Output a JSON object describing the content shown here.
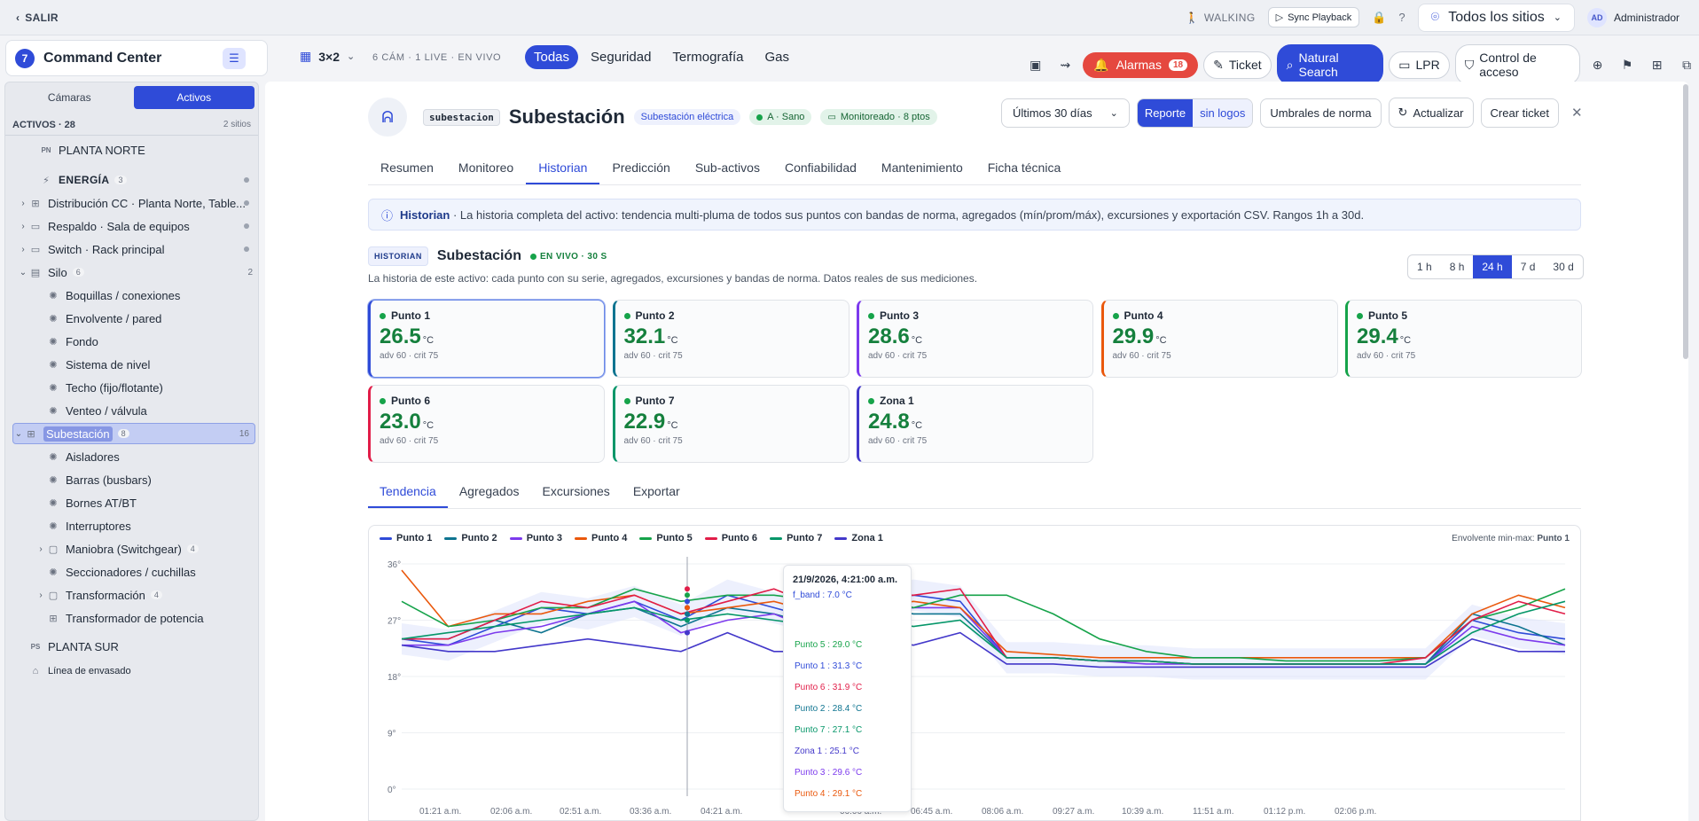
{
  "topbar": {
    "exit_label": "SALIR",
    "walking_label": "WALKING",
    "sync_label": "Sync Playback",
    "sites_label": "Todos los sitios",
    "admin_initials": "AD",
    "admin_label": "Administrador"
  },
  "nav": {
    "brand": "Command Center",
    "brand_num": "7",
    "grid_label": "3×2",
    "cams_label": "6 CÁM · 1 LIVE · EN VIVO",
    "filters": [
      "Todas",
      "Seguridad",
      "Termografía",
      "Gas"
    ],
    "alarms_label": "Alarmas",
    "alarms_count": "18",
    "ticket_label": "Ticket",
    "natural_search_label": "Natural Search",
    "lpr_label": "LPR",
    "access_label": "Control de acceso"
  },
  "sidebar": {
    "tab_cameras": "Cámaras",
    "tab_assets": "Activos",
    "assets_title": "ACTIVOS · 28",
    "sites_count": "2 sitios",
    "items": [
      {
        "label": "PLANTA NORTE",
        "icon": "PN"
      },
      {
        "label": "ENERGÍA",
        "badge": "3"
      },
      {
        "label": "Distribución CC · Planta Norte, Table..."
      },
      {
        "label": "Respaldo · Sala de equipos"
      },
      {
        "label": "Switch · Rack principal"
      },
      {
        "label": "Silo",
        "badge": "6",
        "right": "2"
      },
      {
        "label": "Boquillas / conexiones"
      },
      {
        "label": "Envolvente / pared"
      },
      {
        "label": "Fondo"
      },
      {
        "label": "Sistema de nivel"
      },
      {
        "label": "Techo (fijo/flotante)"
      },
      {
        "label": "Venteo / válvula"
      },
      {
        "label": "Subestación",
        "badge": "8",
        "right": "16"
      },
      {
        "label": "Aisladores"
      },
      {
        "label": "Barras (busbars)"
      },
      {
        "label": "Bornes AT/BT"
      },
      {
        "label": "Interruptores"
      },
      {
        "label": "Maniobra (Switchgear)",
        "badge": "4"
      },
      {
        "label": "Seccionadores / cuchillas"
      },
      {
        "label": "Transformación",
        "badge": "4"
      },
      {
        "label": "Transformador de potencia"
      },
      {
        "label": "PLANTA SUR",
        "icon": "PS"
      },
      {
        "label": "Línea de envasado"
      }
    ]
  },
  "asset": {
    "code": "subestacion",
    "title": "Subestación",
    "type_chip": "Subestación eléctrica",
    "health_chip": "A · Sano",
    "monitor_chip": "Monitoreado · 8 ptos",
    "range_label": "Últimos 30 días",
    "report_label": "Reporte",
    "nologos_label": "sin logos",
    "thresholds_label": "Umbrales de norma",
    "refresh_label": "Actualizar",
    "ticket_label": "Crear ticket",
    "tabs": [
      "Resumen",
      "Monitoreo",
      "Historian",
      "Predicción",
      "Sub-activos",
      "Confiabilidad",
      "Mantenimiento",
      "Ficha técnica"
    ]
  },
  "info": {
    "bold": "Historian",
    "text": " · La historia completa del activo: tendencia multi-pluma de todos sus puntos con bandas de norma, agregados (mín/prom/máx), excursiones y exportación CSV. Rangos 1h a 30d."
  },
  "historian": {
    "tag": "HISTORIAN",
    "title": "Subestación",
    "live": "EN VIVO · 30 S",
    "subtitle": "La historia de este activo: cada punto con su serie, agregados, excursiones y bandas de norma. Datos reales de sus mediciones.",
    "ranges": [
      "1 h",
      "8 h",
      "24 h",
      "7 d",
      "30 d"
    ]
  },
  "cards": [
    {
      "name": "Punto 1",
      "value": "26.5",
      "unit": "°C",
      "limits": "adv 60 · crit 75",
      "color": "#2f4bd8"
    },
    {
      "name": "Punto 2",
      "value": "32.1",
      "unit": "°C",
      "limits": "adv 60 · crit 75",
      "color": "#0e7490"
    },
    {
      "name": "Punto 3",
      "value": "28.6",
      "unit": "°C",
      "limits": "adv 60 · crit 75",
      "color": "#7c3aed"
    },
    {
      "name": "Punto 4",
      "value": "29.9",
      "unit": "°C",
      "limits": "adv 60 · crit 75",
      "color": "#ea580c"
    },
    {
      "name": "Punto 5",
      "value": "29.4",
      "unit": "°C",
      "limits": "adv 60 · crit 75",
      "color": "#16a34a"
    },
    {
      "name": "Punto 6",
      "value": "23.0",
      "unit": "°C",
      "limits": "adv 60 · crit 75",
      "color": "#e11d48"
    },
    {
      "name": "Punto 7",
      "value": "22.9",
      "unit": "°C",
      "limits": "adv 60 · crit 75",
      "color": "#059669"
    },
    {
      "name": "Zona 1",
      "value": "24.8",
      "unit": "°C",
      "limits": "adv 60 · crit 75",
      "color": "#4338ca"
    }
  ],
  "subtabs": [
    "Tendencia",
    "Agregados",
    "Excursiones",
    "Exportar"
  ],
  "chart_data": {
    "type": "line",
    "envelope_label": "Envolvente min-max:",
    "envelope_series": "Punto 1",
    "y_ticks": [
      "36°",
      "27°",
      "18°",
      "9°",
      "0°"
    ],
    "ylim": [
      0,
      36
    ],
    "x_ticks": [
      "01:21 a.m.",
      "02:06 a.m.",
      "02:51 a.m.",
      "03:36 a.m.",
      "04:21 a.m.",
      "06:00 a.m.",
      "06:45 a.m.",
      "08:06 a.m.",
      "09:27 a.m.",
      "10:39 a.m.",
      "11:51 a.m.",
      "01:12 p.m.",
      "02:06 p.m."
    ],
    "series": [
      {
        "name": "Punto 1",
        "color": "#2f4bd8",
        "values": [
          24,
          23,
          26,
          29,
          28,
          30,
          27,
          31,
          29,
          27,
          30,
          31,
          30,
          21,
          21,
          20.5,
          20.5,
          20,
          20,
          20,
          20,
          20,
          20,
          27,
          25,
          24
        ]
      },
      {
        "name": "Punto 2",
        "color": "#0e7490",
        "values": [
          24,
          24,
          27,
          25,
          28,
          29,
          26,
          29,
          28,
          26,
          29,
          28,
          28,
          21,
          21,
          20.5,
          20.5,
          20,
          20,
          20,
          20,
          20,
          20,
          28,
          26,
          23
        ]
      },
      {
        "name": "Punto 3",
        "color": "#7c3aed",
        "values": [
          23,
          23,
          25,
          26,
          28,
          30,
          25,
          27,
          28,
          25,
          28,
          29,
          29,
          21,
          21,
          20.5,
          20,
          20,
          20,
          20,
          20,
          20,
          20,
          26,
          24,
          23
        ]
      },
      {
        "name": "Punto 4",
        "color": "#ea580c",
        "values": [
          35,
          26,
          28,
          28,
          30,
          31,
          28,
          29,
          30,
          28,
          29,
          30,
          29,
          22,
          21.5,
          21,
          21,
          21,
          21,
          21,
          21,
          21,
          21,
          28,
          31,
          29
        ]
      },
      {
        "name": "Punto 5",
        "color": "#16a34a",
        "values": [
          30,
          26,
          27,
          29,
          29,
          32,
          30,
          31,
          31,
          30,
          31,
          29,
          31,
          31,
          28,
          24,
          22,
          21,
          21,
          20.5,
          20.5,
          20.5,
          21,
          27,
          29,
          32
        ]
      },
      {
        "name": "Punto 6",
        "color": "#e11d48",
        "values": [
          24,
          24,
          27,
          30,
          29,
          31,
          28,
          30,
          32,
          29,
          31,
          31,
          32,
          21,
          21,
          20.5,
          20.5,
          20,
          20,
          20,
          20,
          20,
          21,
          27,
          30,
          28
        ]
      },
      {
        "name": "Punto 7",
        "color": "#059669",
        "values": [
          24,
          25,
          26,
          27,
          28,
          29,
          27,
          28,
          27,
          26,
          27,
          26,
          27,
          21,
          21,
          20.5,
          20.5,
          20,
          20,
          20,
          20,
          20,
          20,
          25,
          28,
          30
        ]
      },
      {
        "name": "Zona 1",
        "color": "#4338ca",
        "values": [
          23,
          22,
          22,
          23,
          24,
          23,
          22,
          25,
          22,
          22,
          24,
          23,
          25,
          20,
          20,
          19.5,
          19.5,
          19.5,
          19.5,
          19.5,
          19.5,
          19.5,
          19.5,
          24,
          22,
          22
        ]
      }
    ],
    "tooltip": {
      "time": "21/9/2026, 4:21:00 a.m.",
      "band": "f_band : 7.0 °C",
      "rows": [
        {
          "text": "Punto 5 : 29.0 °C",
          "color": "#16a34a"
        },
        {
          "text": "Punto 1 : 31.3 °C",
          "color": "#2f4bd8"
        },
        {
          "text": "Punto 6 : 31.9 °C",
          "color": "#e11d48"
        },
        {
          "text": "Punto 2 : 28.4 °C",
          "color": "#0e7490"
        },
        {
          "text": "Punto 7 : 27.1 °C",
          "color": "#059669"
        },
        {
          "text": "Zona 1 : 25.1 °C",
          "color": "#4338ca"
        },
        {
          "text": "Punto 3 : 29.6 °C",
          "color": "#7c3aed"
        },
        {
          "text": "Punto 4 : 29.1 °C",
          "color": "#ea580c"
        }
      ]
    }
  }
}
